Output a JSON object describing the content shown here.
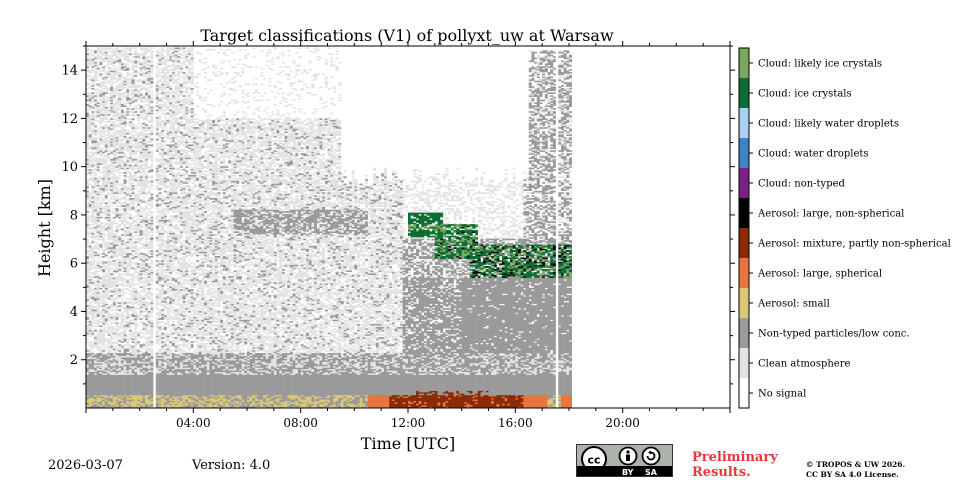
{
  "chart_data": {
    "type": "heatmap",
    "title": "Target classifications (V1) of pollyxt_uw at Warsaw",
    "xlabel": "Time [UTC]",
    "ylabel": "Height [km]",
    "xlim": [
      0,
      24
    ],
    "ylim": [
      0,
      15
    ],
    "x_ticks": [
      {
        "value": 4,
        "label": "04:00"
      },
      {
        "value": 8,
        "label": "08:00"
      },
      {
        "value": 12,
        "label": "12:00"
      },
      {
        "value": 16,
        "label": "16:00"
      },
      {
        "value": 20,
        "label": "20:00"
      }
    ],
    "y_ticks": [
      {
        "value": 2,
        "label": "2"
      },
      {
        "value": 4,
        "label": "4"
      },
      {
        "value": 6,
        "label": "6"
      },
      {
        "value": 8,
        "label": "8"
      },
      {
        "value": 10,
        "label": "10"
      },
      {
        "value": 12,
        "label": "12"
      },
      {
        "value": 14,
        "label": "14"
      }
    ],
    "data_end_time": 18.1,
    "data_gaps": [
      [
        2.5,
        2.6
      ],
      [
        17.55,
        17.65
      ]
    ],
    "legend": [
      {
        "label": "Cloud: likely ice crystals",
        "color": "#79a85d"
      },
      {
        "label": "Cloud: ice crystals",
        "color": "#0d6e35"
      },
      {
        "label": "Cloud: likely water droplets",
        "color": "#a9d0ee"
      },
      {
        "label": "Cloud: water droplets",
        "color": "#3c84c5"
      },
      {
        "label": "Cloud: non-typed",
        "color": "#7b2086"
      },
      {
        "label": "Aerosol: large, non-spherical",
        "color": "#000000"
      },
      {
        "label": "Aerosol: mixture, partly non-spherical",
        "color": "#8c2a06"
      },
      {
        "label": "Aerosol: large, spherical",
        "color": "#e8753c"
      },
      {
        "label": "Aerosol: small",
        "color": "#dcc877"
      },
      {
        "label": "Non-typed particles/low conc.",
        "color": "#9a9a9a"
      },
      {
        "label": "Clean atmosphere",
        "color": "#e3e3e3"
      },
      {
        "label": "No signal",
        "color": "#ffffff"
      }
    ]
  },
  "footer": {
    "date": "2026-03-07",
    "version": "Version: 4.0",
    "preliminary_line1": "Preliminary",
    "preliminary_line2": "Results.",
    "copyright_line1": "© TROPOS & UW 2026.",
    "copyright_line2": "CC BY SA 4.0 License.",
    "license_by": "BY",
    "license_sa": "SA"
  }
}
